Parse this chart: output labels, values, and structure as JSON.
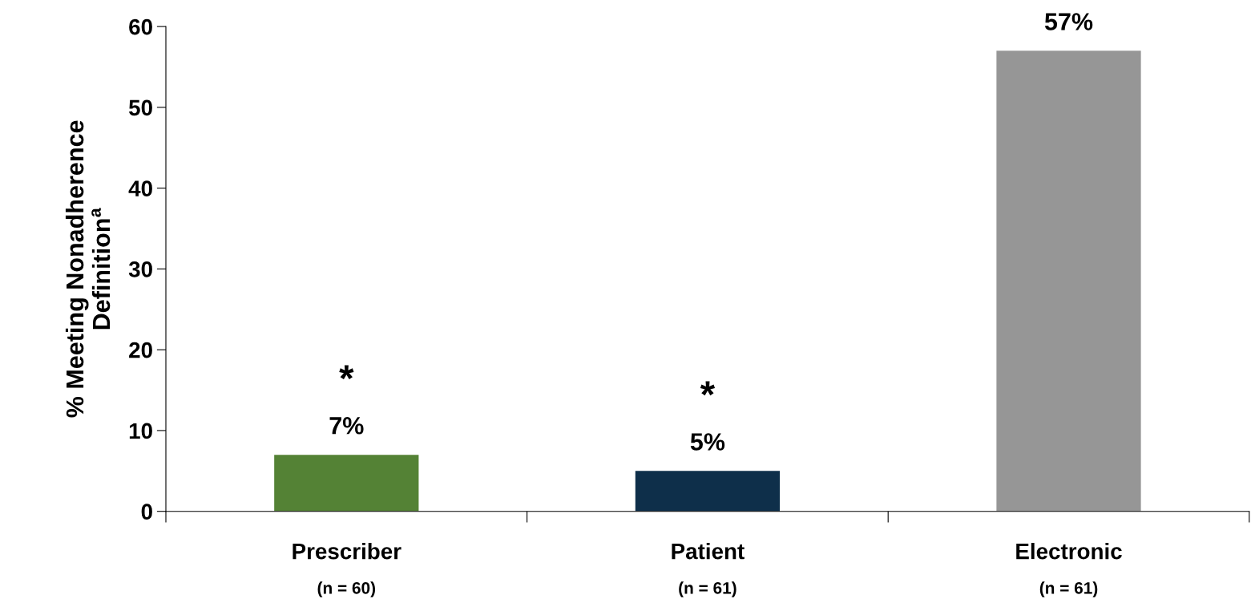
{
  "chart_data": {
    "type": "bar",
    "ylabel": "% Meeting Nonadherence\nDefinition$^{a}$",
    "categories": [
      "Prescriber\n(n = 60)",
      "Patient\n(n = 61)",
      "Electronic\n(n = 61)"
    ],
    "values": [
      7,
      5,
      57
    ],
    "colors": [
      "#548235",
      "#0e2f4a",
      "#969696"
    ],
    "value_labels": [
      "7%",
      "5%",
      "57%"
    ],
    "ylim": [
      0,
      60
    ],
    "yticks": [
      0,
      10,
      20,
      30,
      40,
      50,
      60
    ],
    "grid": false,
    "annotations": [
      "*",
      "*"
    ]
  }
}
